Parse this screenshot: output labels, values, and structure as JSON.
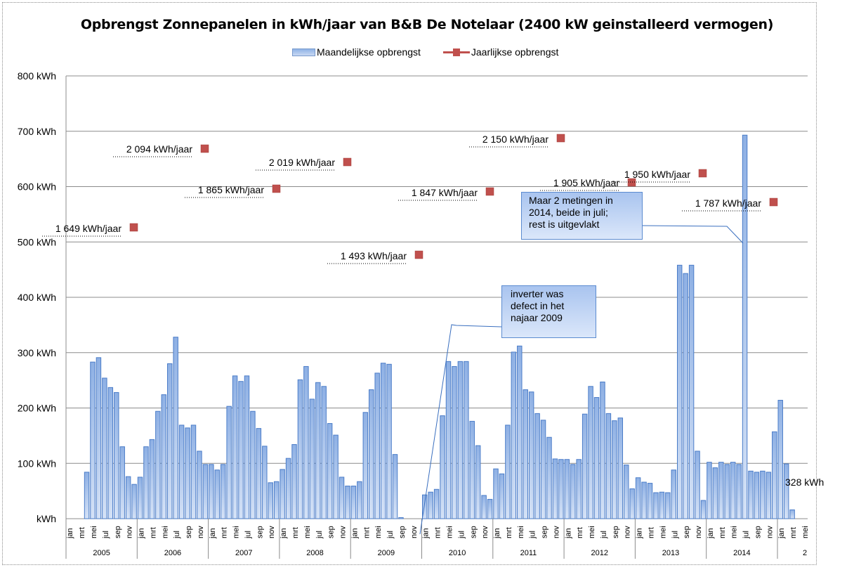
{
  "chart_data": {
    "type": "bar",
    "title": "Opbrengst Zonnepanelen in kWh/jaar van B&B De Notelaar (2400 kW geinstalleerd vermogen)",
    "xlabel": "",
    "ylabel": "",
    "ylim": [
      0,
      800
    ],
    "yticks": [
      0,
      100,
      200,
      300,
      400,
      500,
      600,
      700,
      800
    ],
    "ytick_labels": [
      "kWh",
      "100 kWh",
      "200 kWh",
      "300 kWh",
      "400 kWh",
      "500 kWh",
      "600 kWh",
      "700 kWh",
      "800 kWh"
    ],
    "grid": true,
    "legend_position": "top",
    "legend": [
      "Maandelijkse opbrengst",
      "Jaarlijkse opbrengst"
    ],
    "month_labels": [
      "jan",
      "mrt",
      "mei",
      "jul",
      "sep",
      "nov"
    ],
    "years": [
      "2005",
      "2006",
      "2007",
      "2008",
      "2009",
      "2010",
      "2011",
      "2012",
      "2013",
      "2014",
      "2"
    ],
    "series": [
      {
        "name": "Maandelijkse opbrengst",
        "type": "bar",
        "color": "#8fb2e6",
        "values": [
          0,
          0,
          0,
          84,
          283,
          291,
          254,
          237,
          228,
          130,
          76,
          62,
          75,
          130,
          143,
          194,
          224,
          280,
          328,
          169,
          164,
          169,
          122,
          98,
          98,
          88,
          98,
          203,
          258,
          248,
          258,
          194,
          163,
          131,
          65,
          67,
          89,
          109,
          134,
          251,
          275,
          216,
          246,
          239,
          172,
          151,
          75,
          59,
          59,
          67,
          192,
          233,
          263,
          281,
          279,
          116,
          2,
          0,
          0,
          0,
          43,
          48,
          53,
          186,
          284,
          275,
          284,
          284,
          176,
          132,
          42,
          35,
          90,
          81,
          169,
          301,
          312,
          233,
          229,
          190,
          178,
          147,
          108,
          107,
          107,
          98,
          107,
          189,
          239,
          219,
          247,
          190,
          177,
          182,
          97,
          54,
          74,
          66,
          64,
          47,
          48,
          47,
          88,
          458,
          443,
          458,
          122,
          33,
          102,
          92,
          102,
          98,
          102,
          98,
          693,
          86,
          84,
          86,
          84,
          157,
          214,
          99,
          16,
          0
        ]
      },
      {
        "name": "Jaarlijkse opbrengst",
        "type": "scatter",
        "color": "#c0504d",
        "points": [
          {
            "year": "2005",
            "value": 1649,
            "label": "1 649 kWh/jaar"
          },
          {
            "year": "2006",
            "value": 2094,
            "label": "2 094 kWh/jaar"
          },
          {
            "year": "2007",
            "value": 1865,
            "label": "1 865 kWh/jaar"
          },
          {
            "year": "2008",
            "value": 2019,
            "label": "2 019 kWh/jaar"
          },
          {
            "year": "2009",
            "value": 1493,
            "label": "1 493 kWh/jaar"
          },
          {
            "year": "2010",
            "value": 1847,
            "label": "1 847 kWh/jaar"
          },
          {
            "year": "2011",
            "value": 2150,
            "label": "2 150 kWh/jaar"
          },
          {
            "year": "2012",
            "value": 1905,
            "label": "1 905 kWh/jaar"
          },
          {
            "year": "2013",
            "value": 1950,
            "label": "1 950 kWh/jaar"
          },
          {
            "year": "2014",
            "value": 1787,
            "label": "1 787 kWh/jaar"
          }
        ]
      }
    ],
    "partial_label": "328 kWh",
    "annotations": [
      {
        "text": [
          "inverter was",
          "defect in het",
          "najaar 2009"
        ]
      },
      {
        "text": [
          "Maar 2 metingen  in",
          "2014, beide  in juli;",
          "rest is uitgevlakt"
        ]
      }
    ]
  }
}
